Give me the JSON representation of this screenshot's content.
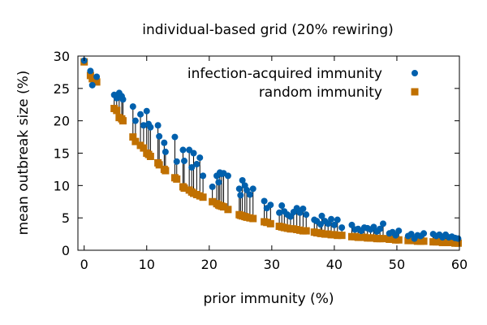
{
  "chart_data": {
    "type": "scatter",
    "title": "individual-based grid (20% rewiring)",
    "xlabel": "prior immunity (%)",
    "ylabel": "mean outbreak size (%)",
    "xlim": [
      -1,
      60
    ],
    "ylim": [
      0,
      30
    ],
    "xticks": [
      0,
      10,
      20,
      30,
      40,
      50,
      60
    ],
    "yticks": [
      0,
      5,
      10,
      15,
      20,
      25,
      30
    ],
    "legend_position": "top-right",
    "connectors": "vertical lines join each infection-acquired point to the random point at the same x",
    "series": [
      {
        "name": "infection-acquired immunity",
        "marker": "circle",
        "color": "#0060ad",
        "points": [
          [
            0,
            29.3
          ],
          [
            1,
            27.7
          ],
          [
            1.3,
            25.5
          ],
          [
            2,
            26.8
          ],
          [
            4.8,
            24.0
          ],
          [
            5.2,
            23.5
          ],
          [
            5.6,
            24.3
          ],
          [
            6,
            23.8
          ],
          [
            6.2,
            23.3
          ],
          [
            7.8,
            22.2
          ],
          [
            8.2,
            20.0
          ],
          [
            9,
            21.0
          ],
          [
            9.5,
            19.3
          ],
          [
            10,
            21.5
          ],
          [
            10.3,
            19.5
          ],
          [
            10.6,
            19.0
          ],
          [
            11.8,
            19.3
          ],
          [
            12,
            17.6
          ],
          [
            12.8,
            16.6
          ],
          [
            13,
            15.2
          ],
          [
            14.5,
            17.5
          ],
          [
            14.8,
            13.7
          ],
          [
            15.8,
            15.5
          ],
          [
            16,
            13.8
          ],
          [
            16.8,
            15.5
          ],
          [
            17.2,
            12.8
          ],
          [
            17.5,
            15.0
          ],
          [
            18,
            13.3
          ],
          [
            18.5,
            14.3
          ],
          [
            19,
            11.5
          ],
          [
            20.5,
            9.8
          ],
          [
            21.2,
            11.5
          ],
          [
            21.5,
            10.5
          ],
          [
            21.7,
            12.0
          ],
          [
            22,
            11.8
          ],
          [
            22.3,
            11.9
          ],
          [
            23,
            11.5
          ],
          [
            24.8,
            9.5
          ],
          [
            25,
            8.5
          ],
          [
            25.3,
            10.8
          ],
          [
            25.7,
            10.0
          ],
          [
            26,
            9.3
          ],
          [
            26.5,
            8.6
          ],
          [
            27,
            9.5
          ],
          [
            28.8,
            7.6
          ],
          [
            29.2,
            6.5
          ],
          [
            29.8,
            7.0
          ],
          [
            31.2,
            5.8
          ],
          [
            31.6,
            6.9
          ],
          [
            32,
            6.0
          ],
          [
            32.5,
            5.5
          ],
          [
            33,
            5.2
          ],
          [
            33.5,
            5.9
          ],
          [
            34,
            6.5
          ],
          [
            34.5,
            5.8
          ],
          [
            35,
            6.4
          ],
          [
            35.5,
            5.5
          ],
          [
            36.8,
            4.7
          ],
          [
            37.2,
            4.5
          ],
          [
            37.8,
            4.0
          ],
          [
            38,
            5.3
          ],
          [
            38.5,
            4.5
          ],
          [
            39,
            4.1
          ],
          [
            39.5,
            4.8
          ],
          [
            40,
            3.9
          ],
          [
            40.5,
            4.7
          ],
          [
            41.2,
            3.5
          ],
          [
            42.8,
            3.9
          ],
          [
            43.3,
            3.2
          ],
          [
            43.8,
            3.3
          ],
          [
            44.3,
            3.0
          ],
          [
            44.8,
            3.5
          ],
          [
            45.3,
            3.4
          ],
          [
            45.8,
            3.2
          ],
          [
            46.3,
            3.6
          ],
          [
            46.8,
            2.9
          ],
          [
            47.3,
            3.3
          ],
          [
            47.8,
            4.1
          ],
          [
            48.8,
            2.6
          ],
          [
            49.3,
            2.8
          ],
          [
            49.8,
            2.3
          ],
          [
            50.3,
            3.0
          ],
          [
            51.8,
            2.2
          ],
          [
            52.3,
            2.5
          ],
          [
            52.8,
            1.8
          ],
          [
            53.3,
            2.3
          ],
          [
            53.8,
            2.2
          ],
          [
            54.3,
            2.6
          ],
          [
            55.8,
            2.5
          ],
          [
            56.3,
            2.2
          ],
          [
            56.8,
            2.4
          ],
          [
            57.3,
            2.0
          ],
          [
            57.8,
            2.4
          ],
          [
            58.3,
            2.0
          ],
          [
            58.8,
            2.1
          ],
          [
            59.3,
            1.9
          ],
          [
            59.8,
            1.8
          ]
        ]
      },
      {
        "name": "random immunity",
        "marker": "square",
        "color": "#c07000",
        "points": [
          [
            0,
            29.1
          ],
          [
            1,
            27.0
          ],
          [
            1.3,
            26.5
          ],
          [
            2,
            26.0
          ],
          [
            4.8,
            21.9
          ],
          [
            5.2,
            21.6
          ],
          [
            5.6,
            20.5
          ],
          [
            6,
            20.3
          ],
          [
            6.2,
            20.0
          ],
          [
            7.8,
            17.5
          ],
          [
            8.2,
            16.8
          ],
          [
            9,
            16.2
          ],
          [
            9.5,
            15.8
          ],
          [
            10,
            15.0
          ],
          [
            10.3,
            14.8
          ],
          [
            10.6,
            14.5
          ],
          [
            11.8,
            13.5
          ],
          [
            12,
            13.2
          ],
          [
            12.8,
            12.5
          ],
          [
            13,
            12.3
          ],
          [
            14.5,
            11.2
          ],
          [
            14.8,
            11.0
          ],
          [
            15.8,
            9.8
          ],
          [
            16,
            9.6
          ],
          [
            16.8,
            9.3
          ],
          [
            17.2,
            9.0
          ],
          [
            17.5,
            8.8
          ],
          [
            18,
            8.6
          ],
          [
            18.5,
            8.4
          ],
          [
            19,
            8.2
          ],
          [
            20.5,
            7.5
          ],
          [
            21.2,
            7.2
          ],
          [
            21.5,
            7.0
          ],
          [
            21.7,
            6.9
          ],
          [
            22,
            6.8
          ],
          [
            22.3,
            6.7
          ],
          [
            23,
            6.3
          ],
          [
            24.8,
            5.5
          ],
          [
            25,
            5.4
          ],
          [
            25.3,
            5.3
          ],
          [
            25.7,
            5.2
          ],
          [
            26,
            5.1
          ],
          [
            26.5,
            5.0
          ],
          [
            27,
            4.9
          ],
          [
            28.8,
            4.4
          ],
          [
            29.2,
            4.3
          ],
          [
            29.8,
            4.1
          ],
          [
            31.2,
            3.7
          ],
          [
            31.6,
            3.6
          ],
          [
            32,
            3.5
          ],
          [
            32.5,
            3.4
          ],
          [
            33,
            3.3
          ],
          [
            33.5,
            3.3
          ],
          [
            34,
            3.2
          ],
          [
            34.5,
            3.1
          ],
          [
            35,
            3.0
          ],
          [
            35.5,
            3.0
          ],
          [
            36.8,
            2.8
          ],
          [
            37.2,
            2.7
          ],
          [
            37.8,
            2.6
          ],
          [
            38,
            2.6
          ],
          [
            38.5,
            2.5
          ],
          [
            39,
            2.5
          ],
          [
            39.5,
            2.4
          ],
          [
            40,
            2.4
          ],
          [
            40.5,
            2.3
          ],
          [
            41.2,
            2.3
          ],
          [
            42.8,
            2.1
          ],
          [
            43.3,
            2.1
          ],
          [
            43.8,
            2.0
          ],
          [
            44.3,
            2.0
          ],
          [
            44.8,
            2.0
          ],
          [
            45.3,
            1.9
          ],
          [
            45.8,
            1.9
          ],
          [
            46.3,
            1.9
          ],
          [
            46.8,
            1.8
          ],
          [
            47.3,
            1.8
          ],
          [
            47.8,
            1.8
          ],
          [
            48.8,
            1.7
          ],
          [
            49.3,
            1.7
          ],
          [
            49.8,
            1.6
          ],
          [
            50.3,
            1.6
          ],
          [
            51.8,
            1.5
          ],
          [
            52.3,
            1.5
          ],
          [
            52.8,
            1.5
          ],
          [
            53.3,
            1.4
          ],
          [
            53.8,
            1.4
          ],
          [
            54.3,
            1.4
          ],
          [
            55.8,
            1.3
          ],
          [
            56.3,
            1.3
          ],
          [
            56.8,
            1.3
          ],
          [
            57.3,
            1.2
          ],
          [
            57.8,
            1.2
          ],
          [
            58.3,
            1.2
          ],
          [
            58.8,
            1.2
          ],
          [
            59.3,
            1.1
          ],
          [
            59.8,
            1.1
          ]
        ]
      }
    ]
  }
}
